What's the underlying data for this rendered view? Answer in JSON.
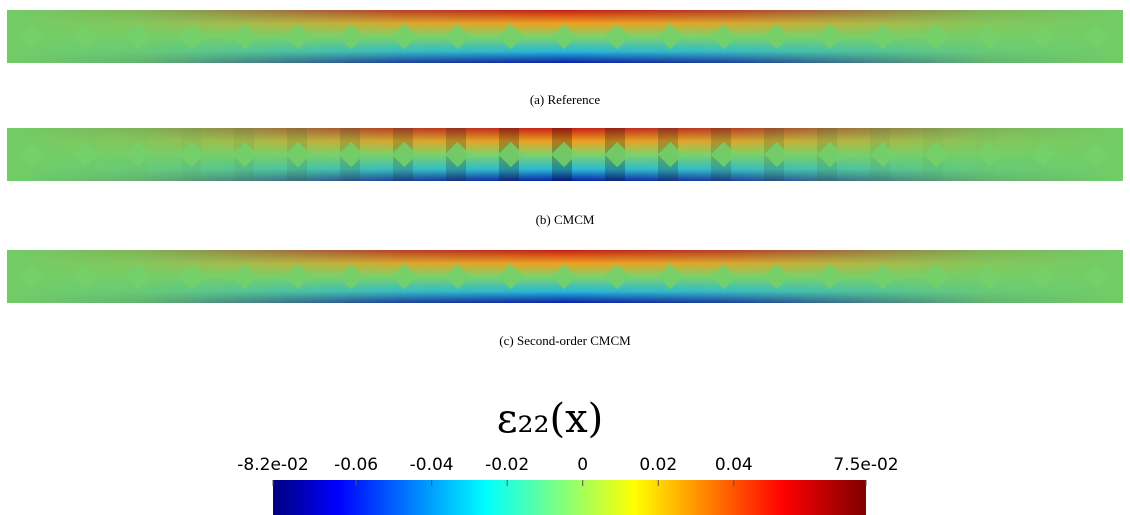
{
  "panels": [
    {
      "caption": "(a) Reference"
    },
    {
      "caption": "(b) CMCM"
    },
    {
      "caption": "(c) Second-order CMCM"
    }
  ],
  "colorbar": {
    "title": "ε₂₂(x)",
    "lim": [
      -0.082,
      0.075
    ],
    "ticks": [
      {
        "value": -0.082,
        "label": "-8.2e-02"
      },
      -0.06,
      -0.04,
      -0.02,
      0,
      0.02,
      0.04,
      {
        "value": 0.075,
        "label": "7.5e-02"
      }
    ]
  }
}
